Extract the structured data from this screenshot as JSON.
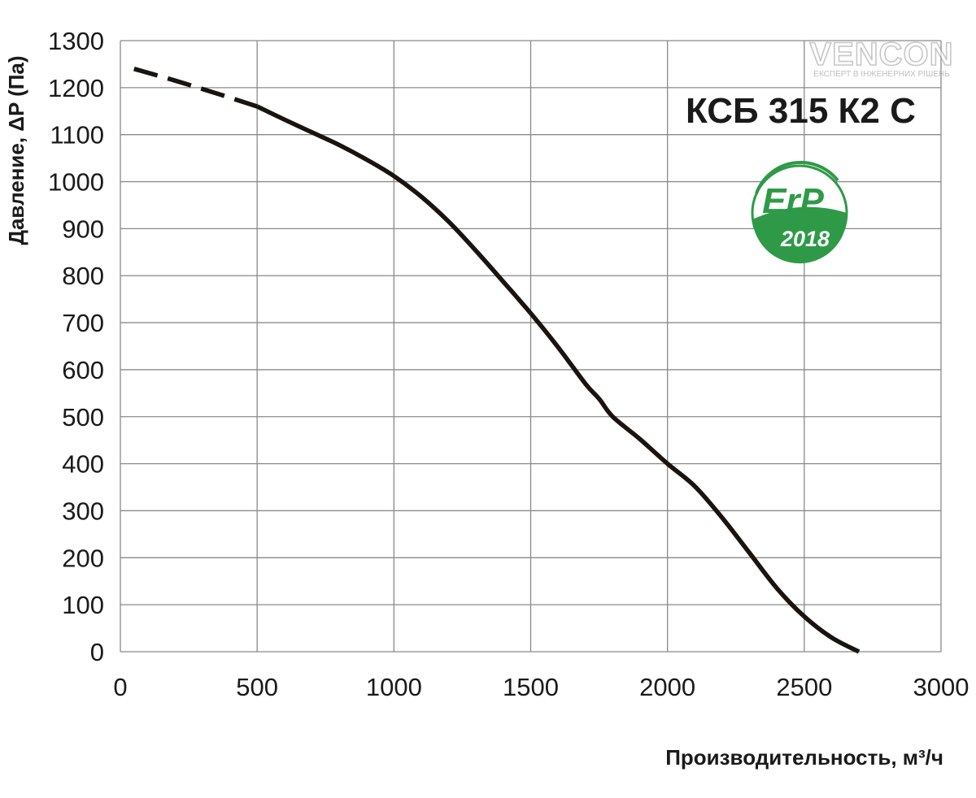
{
  "chart_data": {
    "type": "line",
    "title": "КСБ 315 К2 С",
    "xlabel": "Производительность,  м³/ч",
    "ylabel": "Давление, ΔP (Па)",
    "xlim": [
      0,
      3000
    ],
    "ylim": [
      0,
      1300
    ],
    "x_ticks": [
      0,
      500,
      1000,
      1500,
      2000,
      2500,
      3000
    ],
    "y_ticks": [
      0,
      100,
      200,
      300,
      400,
      500,
      600,
      700,
      800,
      900,
      1000,
      1100,
      1200,
      1300
    ],
    "grid": true,
    "series": [
      {
        "style": "dashed",
        "color": "#1a1410",
        "x": [
          50,
          200,
          350,
          500
        ],
        "y": [
          1240,
          1215,
          1188,
          1160
        ]
      },
      {
        "style": "solid",
        "color": "#1a1410",
        "x": [
          500,
          600,
          700,
          800,
          900,
          1000,
          1100,
          1200,
          1300,
          1400,
          1500,
          1600,
          1700,
          1750,
          1800,
          1900,
          2000,
          2100,
          2200,
          2300,
          2400,
          2500,
          2600,
          2700
        ],
        "y": [
          1160,
          1132,
          1105,
          1078,
          1047,
          1012,
          968,
          915,
          853,
          787,
          720,
          648,
          570,
          538,
          500,
          452,
          400,
          352,
          285,
          210,
          135,
          75,
          30,
          0
        ]
      }
    ]
  },
  "badges": {
    "erp_text": "ErP",
    "erp_year": "2018",
    "erp_color": "#2e9a47",
    "brand_name": "VENCON",
    "brand_tagline": "ЕКСПЕРТ В ІНЖЕНЕРНИХ РІШЕНЬ"
  }
}
